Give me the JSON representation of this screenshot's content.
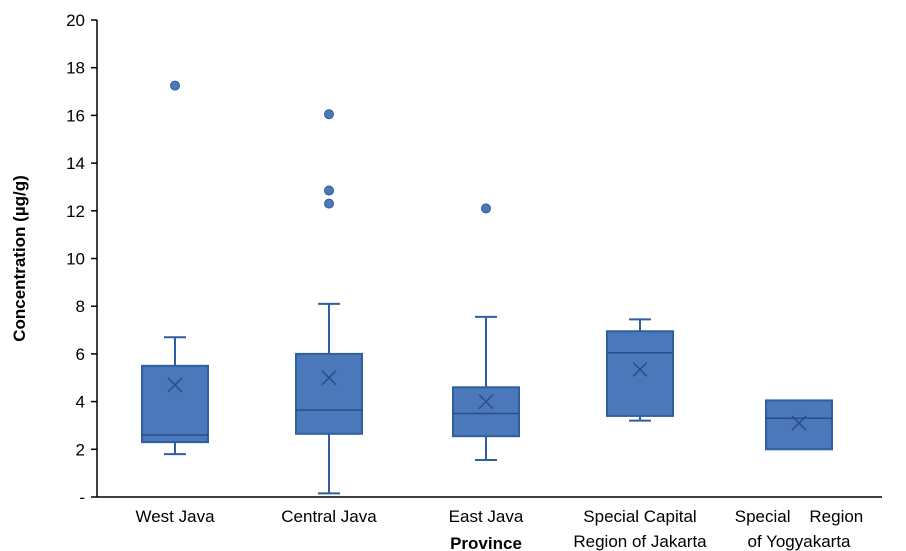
{
  "chart_data": {
    "type": "box",
    "xlabel": "Province",
    "ylabel": "Concentration (µg/g)",
    "ylim": [
      0,
      20
    ],
    "yticks": [
      {
        "value": 0,
        "label": "-"
      },
      {
        "value": 2,
        "label": "2"
      },
      {
        "value": 4,
        "label": "4"
      },
      {
        "value": 6,
        "label": "6"
      },
      {
        "value": 8,
        "label": "8"
      },
      {
        "value": 10,
        "label": "10"
      },
      {
        "value": 12,
        "label": "12"
      },
      {
        "value": 14,
        "label": "14"
      },
      {
        "value": 16,
        "label": "16"
      },
      {
        "value": 18,
        "label": "18"
      },
      {
        "value": 20,
        "label": "20"
      }
    ],
    "grid": false,
    "legend": "none",
    "box_color": "#4a78bb",
    "box_edge_color": "#2f5f9e",
    "categories": [
      {
        "label_lines": [
          "West Java"
        ],
        "min": 1.8,
        "q1": 2.3,
        "median": 2.6,
        "q3": 5.5,
        "max": 6.7,
        "mean": 4.7,
        "outliers": [
          17.25
        ]
      },
      {
        "label_lines": [
          "Central Java"
        ],
        "min": 0.15,
        "q1": 2.65,
        "median": 3.65,
        "q3": 6.0,
        "max": 8.1,
        "mean": 5.0,
        "outliers": [
          16.05,
          12.85,
          12.3
        ]
      },
      {
        "label_lines": [
          "East Java"
        ],
        "min": 1.55,
        "q1": 2.55,
        "median": 3.5,
        "q3": 4.6,
        "max": 7.55,
        "mean": 4.0,
        "outliers": [
          12.1
        ]
      },
      {
        "label_lines": [
          "Special Capital",
          "Region of Jakarta"
        ],
        "min": 3.2,
        "q1": 3.4,
        "median": 6.05,
        "q3": 6.95,
        "max": 7.45,
        "mean": 5.35,
        "outliers": []
      },
      {
        "label_lines": [
          "Special    Region",
          "of Yogyakarta"
        ],
        "min": 2.0,
        "q1": 2.0,
        "median": 3.3,
        "q3": 4.05,
        "max": 4.05,
        "mean": 3.1,
        "outliers": []
      }
    ]
  }
}
